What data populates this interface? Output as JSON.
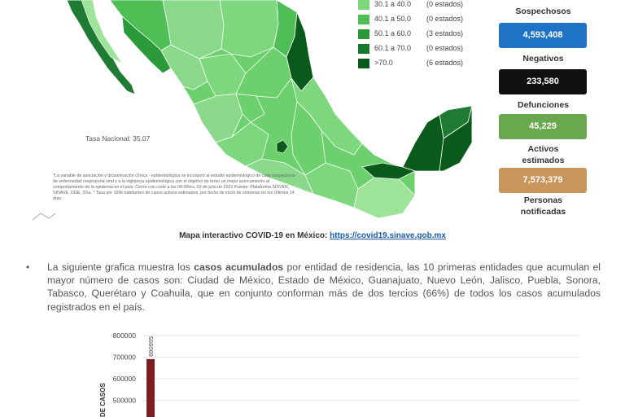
{
  "map": {
    "legend": [
      {
        "range": "30.1 a  40.0",
        "count": "(0 estados)",
        "color": "#7dd87d"
      },
      {
        "range": "40.1 a  50.0",
        "count": "(0 estados)",
        "color": "#4fbf55"
      },
      {
        "range": "50.1 a  60.0",
        "count": "(3 estados)",
        "color": "#2a9a3a"
      },
      {
        "range": "60.1 a  70.0",
        "count": "(0 estados)",
        "color": "#167a2a"
      },
      {
        "range": ">70.0",
        "count": "(6 estados)",
        "color": "#0a5a1c"
      }
    ],
    "tasa_nacional": "Tasa Nacional: 35.07",
    "footnote": "*La variable de asociación y dictaminación clínica - epidemiológica se incorporó al estudio epidemiológico de caso sospechoso de enfermedad respiratoria viral y a la vigilancia epidemiológica con el objetivo de tener un mejor acercamiento al comportamiento de la epidemia en el país.   Cierre con corte a las 09:00hrs, 03 de julio de 2021   Fuente: Plataforma SISVER, SINAVE, DGE, SSa.   * Tasa por 100k habitantes de casos activos estimados, por fecha de inicio de síntomas en los Últimos 14 días.",
    "caption_text": "Mapa interactivo COVID-19 en México: ",
    "caption_link": "https://covid19.sinave.gob.mx",
    "colors": {
      "light": "#9ee39a",
      "mid": "#6cd06c",
      "dark": "#1f7a33"
    }
  },
  "stats": {
    "sospechosos_label": "Sospechosos",
    "sospechosos_value": "4,593,408",
    "negativos_label": "Negativos",
    "negativos_value": "233,580",
    "defunciones_label": "Defunciones",
    "defunciones_value": "45,229",
    "activos_label": "Activos estimados",
    "activos_value": "7,573,379",
    "personas_label": "Personas notificadas",
    "colors": {
      "blue": "#1f73c6",
      "black": "#111111",
      "green": "#6aa84f",
      "tan": "#c8955a"
    }
  },
  "paragraph": {
    "bullet": "•",
    "pre": "La siguiente grafica muestra los ",
    "bold": "casos acumulados",
    "post": " por entidad de residencia, las 10 primeras entidades que acumulan el mayor número de casos son: Ciudad de México, Estado de México, Guanajuato, Nuevo León, Jalisco, Puebla, Sonora, Tabasco, Querétaro y Coahuila, que en conjunto conforman más de dos tercios (66%) de todos los casos acumulados registrados en el país."
  },
  "chart_data": {
    "type": "bar",
    "ylabel": "DE CASOS",
    "yticks": [
      "800000",
      "700000",
      "600000",
      "500000"
    ],
    "ylim": [
      0,
      800000
    ],
    "grid": true,
    "values": [
      690995
    ],
    "value_labels": [
      "690995"
    ],
    "bar_color": "#7a1f1f"
  }
}
